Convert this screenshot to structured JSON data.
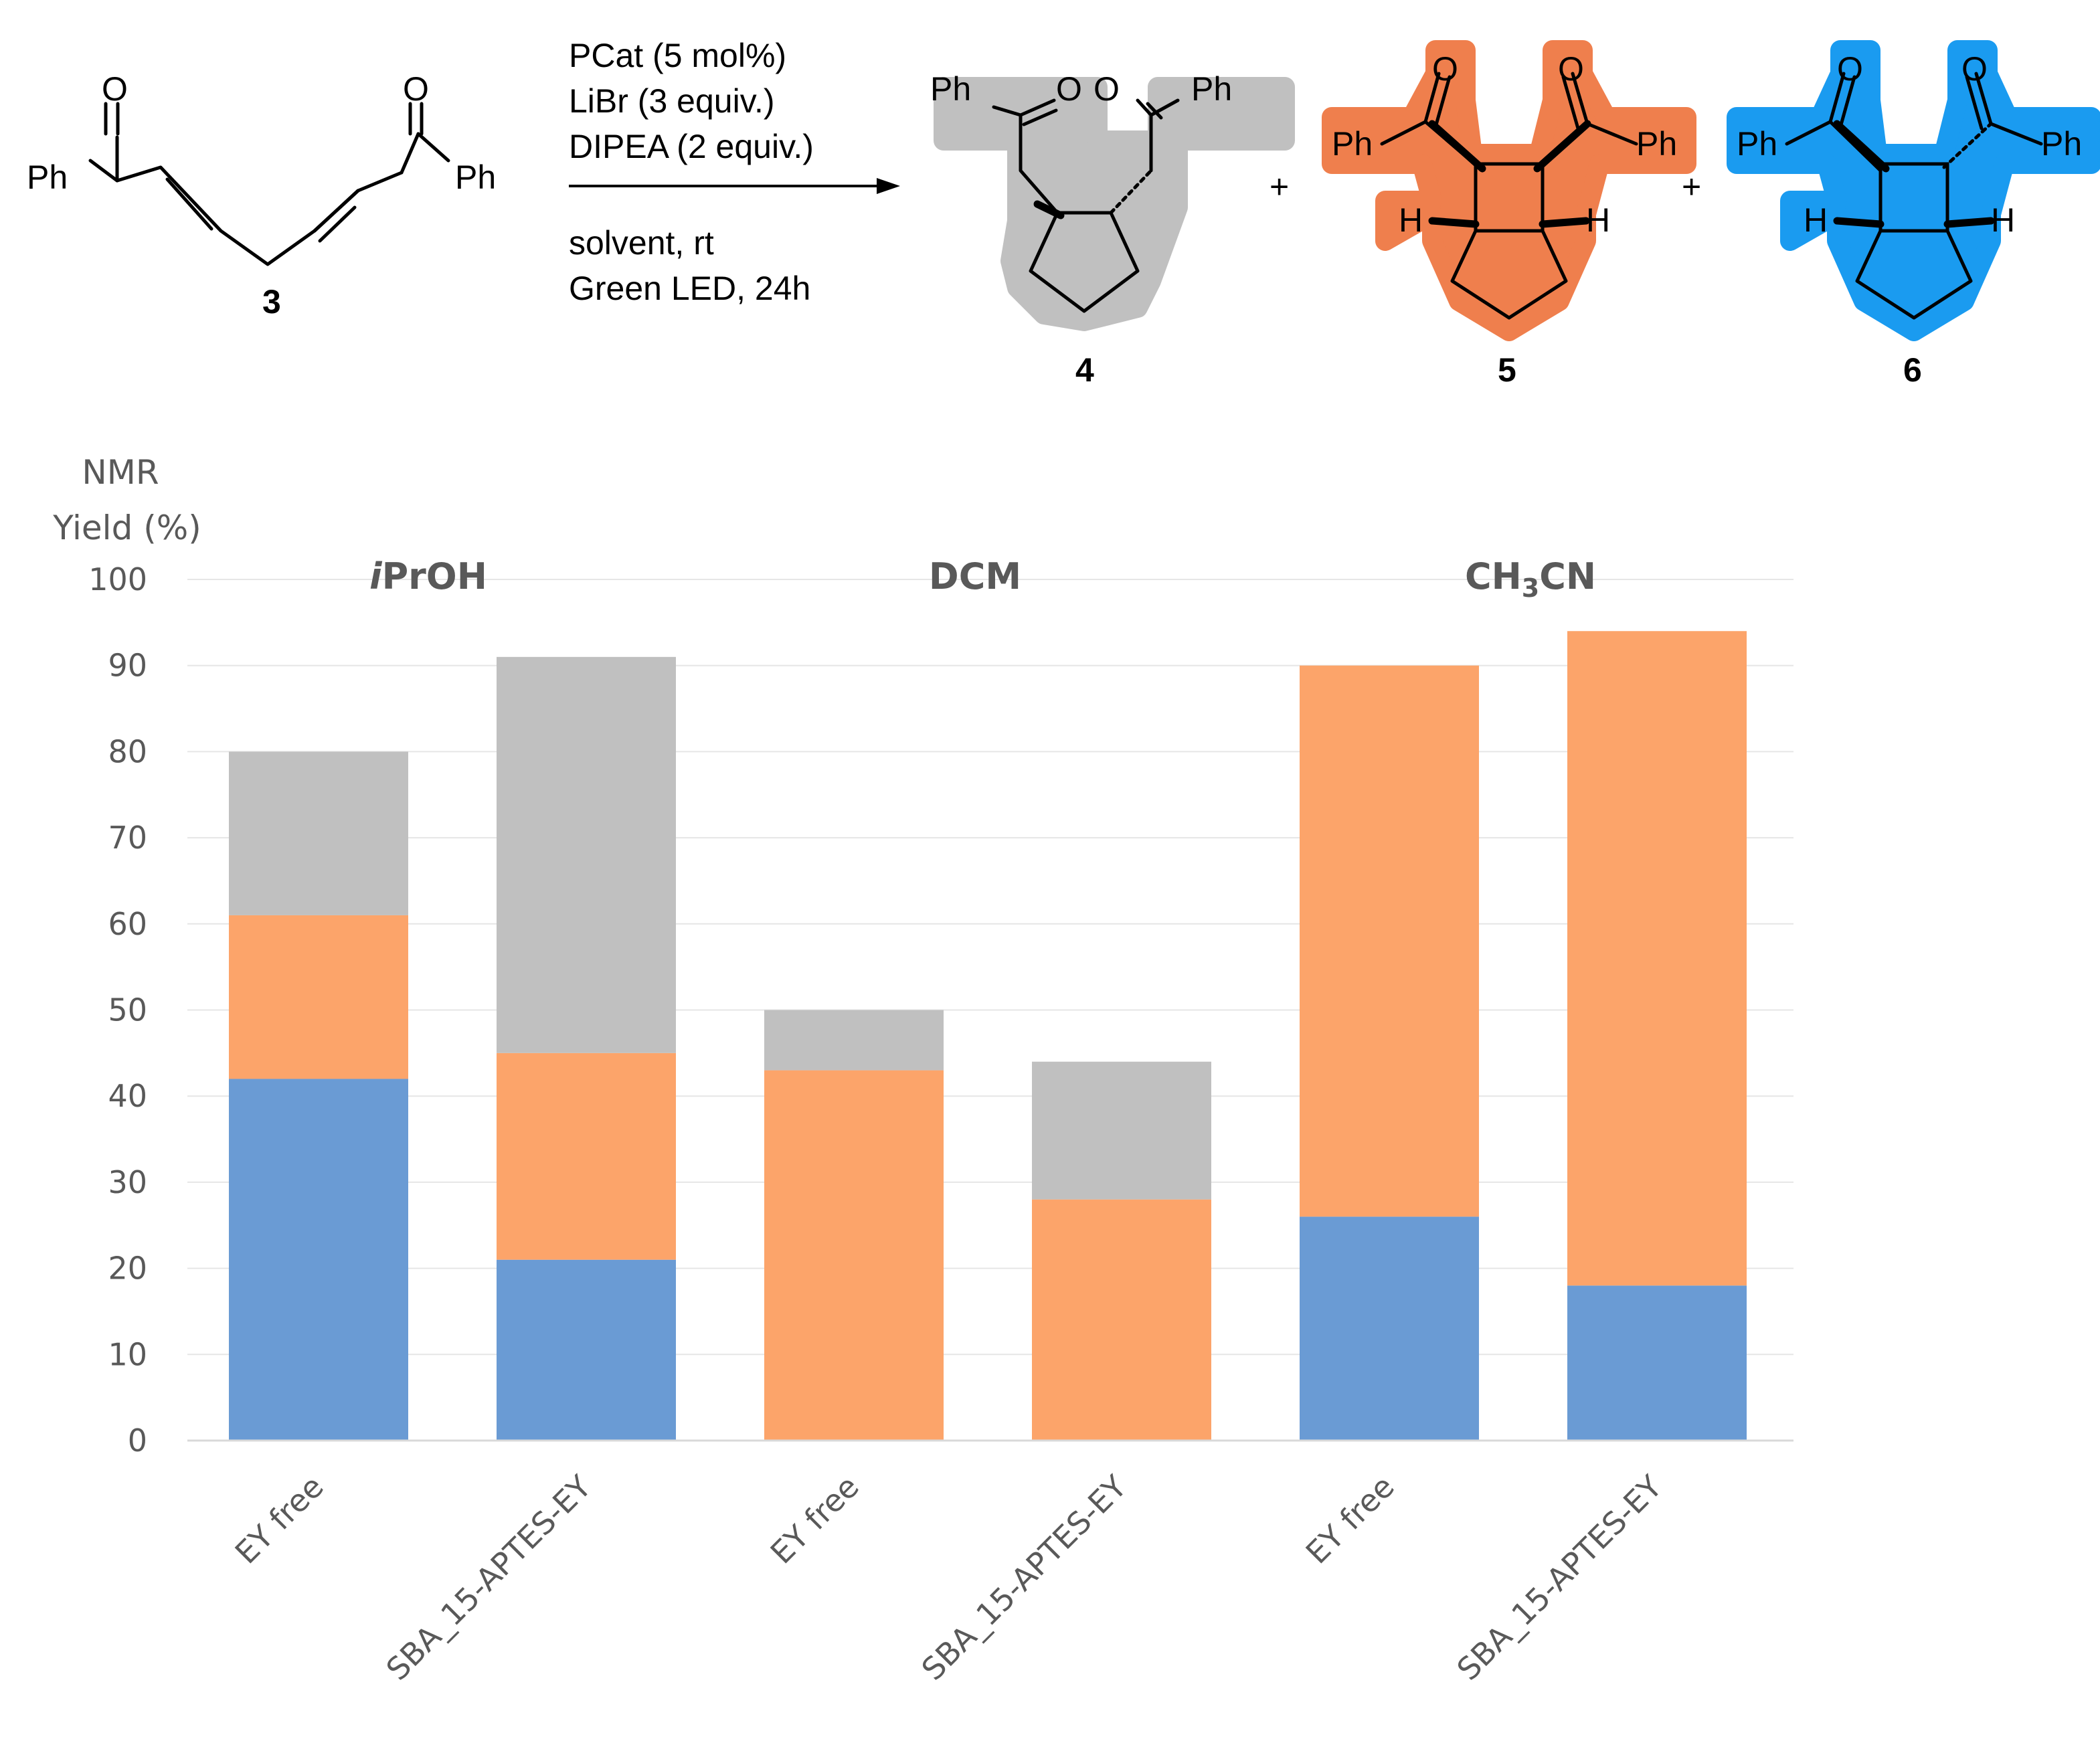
{
  "scheme": {
    "reactant": {
      "number": "3",
      "left_group": "Ph",
      "right_group": "Ph",
      "oxygen": "O"
    },
    "conditions": [
      "PCat (5 mol%)",
      "LiBr (3 equiv.)",
      "DIPEA (2 equiv.)",
      "solvent, rt",
      "Green  LED, 24h"
    ],
    "plus": "+",
    "products": [
      {
        "number": "4",
        "left_group": "Ph",
        "right_group": "Ph",
        "oxygen": "O",
        "color": "#bfbfbf"
      },
      {
        "number": "5",
        "left_group": "Ph",
        "right_group": "Ph",
        "oxygen": "O",
        "hydrogen": "H",
        "color": "#ed7d4a"
      },
      {
        "number": "6",
        "left_group": "Ph",
        "right_group": "Ph",
        "oxygen": "O",
        "hydrogen": "H",
        "color": "#1a9bf0"
      }
    ]
  },
  "chart_data": {
    "type": "bar",
    "stacked": true,
    "ylabel": [
      "NMR",
      "Yield (%)"
    ],
    "ylim": [
      0,
      100
    ],
    "yticks": [
      0,
      10,
      20,
      30,
      40,
      50,
      60,
      70,
      80,
      90,
      100
    ],
    "grid": true,
    "groups": [
      {
        "label_main": "i",
        "label_rest": "PrOH"
      },
      {
        "label_main": "DCM",
        "label_rest": ""
      },
      {
        "label_main": "CH",
        "label_sub": "3",
        "label_rest": "CN"
      }
    ],
    "categories": [
      "EY free",
      "SBA_15-APTES-EY",
      "EY free",
      "SBA_15-APTES-EY",
      "EY free",
      "SBA_15-APTES-EY"
    ],
    "series": [
      {
        "name": "6",
        "color": "#6a9bd4",
        "values": [
          42,
          21,
          0,
          0,
          26,
          18
        ]
      },
      {
        "name": "5",
        "color": "#fca46a",
        "values": [
          19,
          24,
          43,
          28,
          64,
          76
        ]
      },
      {
        "name": "4",
        "color": "#c0c0c0",
        "values": [
          19,
          46,
          7,
          16,
          0,
          0
        ]
      }
    ]
  }
}
